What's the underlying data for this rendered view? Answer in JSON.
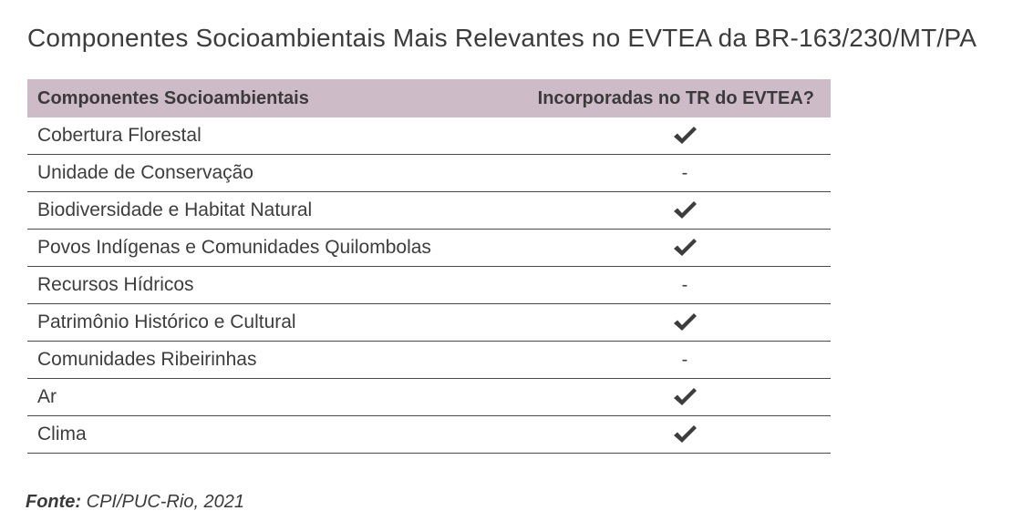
{
  "title": "Componentes Socioambientais Mais Relevantes no EVTEA da BR-163/230/MT/PA",
  "table": {
    "headers": [
      "Componentes Socioambientais",
      "Incorporadas no TR do EVTEA?"
    ],
    "rows": [
      {
        "name": "Cobertura Florestal",
        "incorporated": true
      },
      {
        "name": "Unidade de Conservação",
        "incorporated": false,
        "text": "-"
      },
      {
        "name": "Biodiversidade e Habitat Natural",
        "incorporated": true
      },
      {
        "name": "Povos Indígenas e Comunidades Quilombolas",
        "incorporated": true
      },
      {
        "name": "Recursos Hídricos",
        "incorporated": false,
        "text": "-"
      },
      {
        "name": "Patrimônio Histórico e Cultural",
        "incorporated": true
      },
      {
        "name": "Comunidades Ribeirinhas",
        "incorporated": false,
        "text": "-"
      },
      {
        "name": "Ar",
        "incorporated": true
      },
      {
        "name": "Clima",
        "incorporated": true
      }
    ]
  },
  "colors": {
    "header_bg": "#cdbcc8",
    "text": "#3a3a3a",
    "rule": "#4a4a4a"
  },
  "source": {
    "label": "Fonte:",
    "text": " CPI/PUC-Rio, 2021"
  }
}
